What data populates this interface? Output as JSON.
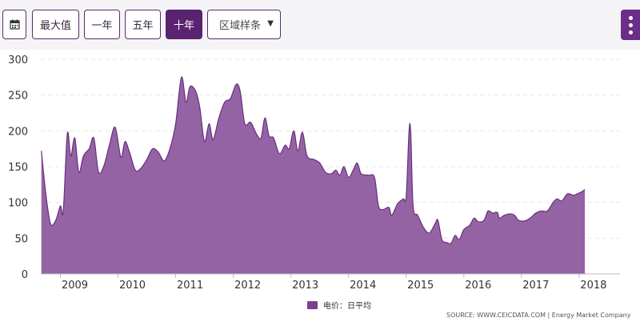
{
  "toolbar": {
    "calendar_icon": "calendar-icon",
    "max_label": "最大值",
    "one_year_label": "一年",
    "five_year_label": "五年",
    "ten_year_label": "十年",
    "region_select_value": "区域样条",
    "menu_icon": "vertical-dots-icon"
  },
  "colors": {
    "accent": "#6b2d87",
    "area_fill": "#8e5b9e",
    "area_line": "#6a2e80",
    "active_button": "#5a2371"
  },
  "chart_data": {
    "type": "area",
    "title": "",
    "xlabel": "",
    "ylabel": "",
    "ylim": [
      0,
      300
    ],
    "yticks": [
      "0",
      "50",
      "100",
      "150",
      "200",
      "250",
      "300"
    ],
    "xticks": [
      "2009",
      "2010",
      "2011",
      "2012",
      "2013",
      "2014",
      "2015",
      "2016",
      "2017",
      "2018"
    ],
    "xlim": [
      2008.66,
      2018.71
    ],
    "grid": true,
    "legend_position": "bottom-center",
    "series": [
      {
        "name": "电价：日平均",
        "color": "#7b3f8f",
        "points": [
          [
            2008.67,
            172
          ],
          [
            2008.75,
            110
          ],
          [
            2008.83,
            70
          ],
          [
            2008.92,
            75
          ],
          [
            2009.0,
            95
          ],
          [
            2009.05,
            88
          ],
          [
            2009.12,
            196
          ],
          [
            2009.18,
            165
          ],
          [
            2009.25,
            190
          ],
          [
            2009.32,
            142
          ],
          [
            2009.4,
            165
          ],
          [
            2009.5,
            175
          ],
          [
            2009.58,
            190
          ],
          [
            2009.66,
            143
          ],
          [
            2009.75,
            150
          ],
          [
            2009.85,
            180
          ],
          [
            2009.95,
            205
          ],
          [
            2010.05,
            163
          ],
          [
            2010.12,
            185
          ],
          [
            2010.2,
            170
          ],
          [
            2010.3,
            145
          ],
          [
            2010.4,
            148
          ],
          [
            2010.5,
            160
          ],
          [
            2010.6,
            175
          ],
          [
            2010.7,
            170
          ],
          [
            2010.8,
            158
          ],
          [
            2010.9,
            175
          ],
          [
            2011.0,
            210
          ],
          [
            2011.1,
            275
          ],
          [
            2011.18,
            240
          ],
          [
            2011.25,
            262
          ],
          [
            2011.35,
            255
          ],
          [
            2011.42,
            232
          ],
          [
            2011.5,
            185
          ],
          [
            2011.58,
            210
          ],
          [
            2011.65,
            188
          ],
          [
            2011.75,
            218
          ],
          [
            2011.85,
            240
          ],
          [
            2011.95,
            245
          ],
          [
            2012.05,
            265
          ],
          [
            2012.12,
            255
          ],
          [
            2012.2,
            210
          ],
          [
            2012.3,
            212
          ],
          [
            2012.4,
            196
          ],
          [
            2012.48,
            190
          ],
          [
            2012.55,
            218
          ],
          [
            2012.62,
            193
          ],
          [
            2012.7,
            190
          ],
          [
            2012.8,
            168
          ],
          [
            2012.9,
            180
          ],
          [
            2012.97,
            175
          ],
          [
            2013.05,
            200
          ],
          [
            2013.12,
            172
          ],
          [
            2013.2,
            198
          ],
          [
            2013.28,
            165
          ],
          [
            2013.4,
            160
          ],
          [
            2013.5,
            155
          ],
          [
            2013.6,
            142
          ],
          [
            2013.7,
            140
          ],
          [
            2013.78,
            145
          ],
          [
            2013.85,
            138
          ],
          [
            2013.92,
            150
          ],
          [
            2014.0,
            135
          ],
          [
            2014.08,
            145
          ],
          [
            2014.15,
            155
          ],
          [
            2014.22,
            140
          ],
          [
            2014.35,
            138
          ],
          [
            2014.45,
            135
          ],
          [
            2014.52,
            95
          ],
          [
            2014.6,
            90
          ],
          [
            2014.7,
            93
          ],
          [
            2014.75,
            82
          ],
          [
            2014.85,
            98
          ],
          [
            2014.95,
            105
          ],
          [
            2015.0,
            108
          ],
          [
            2015.05,
            200
          ],
          [
            2015.08,
            196
          ],
          [
            2015.12,
            95
          ],
          [
            2015.2,
            82
          ],
          [
            2015.3,
            65
          ],
          [
            2015.4,
            57
          ],
          [
            2015.5,
            70
          ],
          [
            2015.55,
            75
          ],
          [
            2015.62,
            48
          ],
          [
            2015.7,
            44
          ],
          [
            2015.78,
            43
          ],
          [
            2015.85,
            54
          ],
          [
            2015.92,
            48
          ],
          [
            2016.0,
            62
          ],
          [
            2016.1,
            68
          ],
          [
            2016.18,
            78
          ],
          [
            2016.25,
            73
          ],
          [
            2016.35,
            75
          ],
          [
            2016.42,
            88
          ],
          [
            2016.5,
            85
          ],
          [
            2016.58,
            86
          ],
          [
            2016.62,
            78
          ],
          [
            2016.7,
            82
          ],
          [
            2016.8,
            84
          ],
          [
            2016.88,
            82
          ],
          [
            2016.95,
            75
          ],
          [
            2017.05,
            74
          ],
          [
            2017.15,
            78
          ],
          [
            2017.25,
            85
          ],
          [
            2017.35,
            88
          ],
          [
            2017.45,
            88
          ],
          [
            2017.55,
            100
          ],
          [
            2017.62,
            105
          ],
          [
            2017.7,
            102
          ],
          [
            2017.8,
            112
          ],
          [
            2017.9,
            110
          ],
          [
            2017.97,
            112
          ],
          [
            2018.05,
            115
          ],
          [
            2018.1,
            118
          ]
        ]
      }
    ],
    "source_text": "SOURCE: WWW.CEICDATA.COM | Energy Market Company"
  }
}
